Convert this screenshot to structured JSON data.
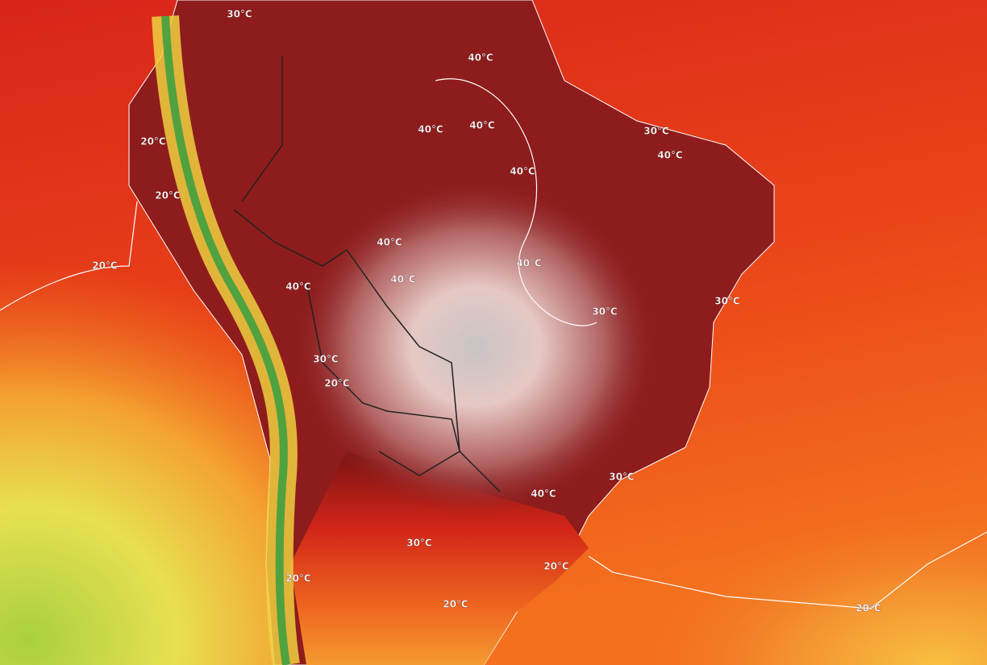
{
  "contour_labels": [
    "30°C",
    "40°C",
    "40°C",
    "40°C",
    "30°C",
    "40°C",
    "40°C",
    "20°C",
    "20°C",
    "20°C",
    "40°C",
    "40°C",
    "40°C",
    "40°C",
    "30°C",
    "30°C",
    "30°C",
    "20°C",
    "30°C",
    "40°C",
    "30°C",
    "20°C",
    "20°C",
    "20°C",
    "20°C"
  ]
}
